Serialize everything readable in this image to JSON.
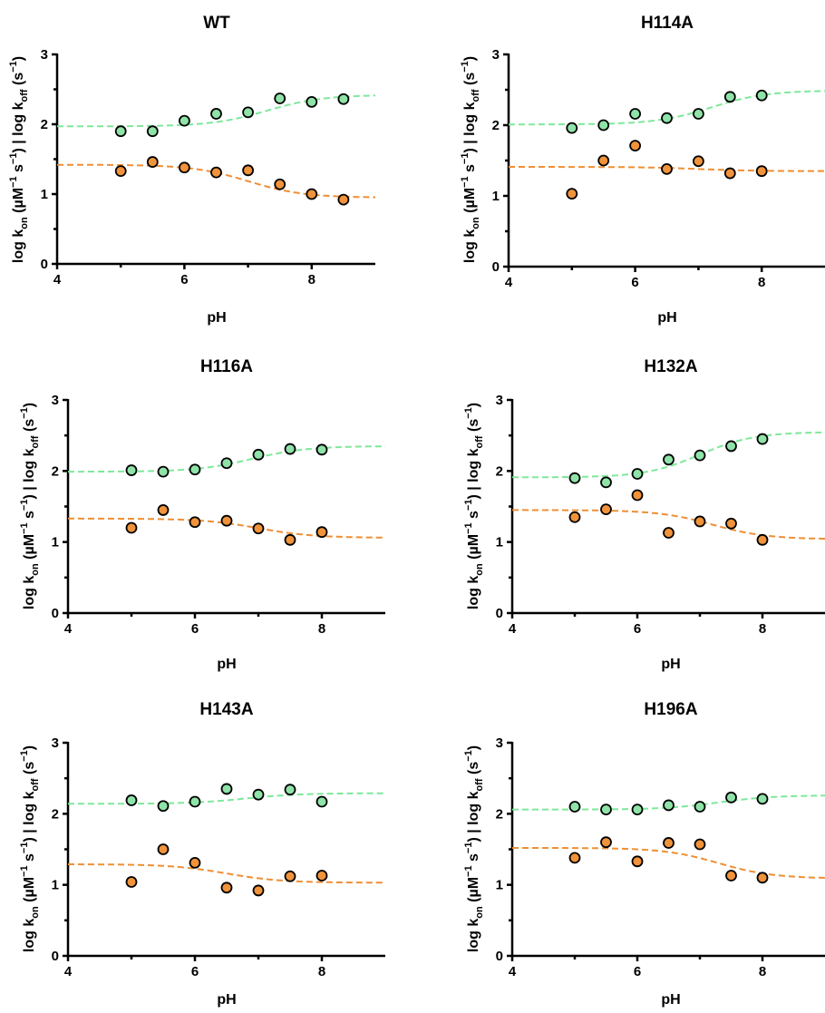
{
  "chart_data": [
    {
      "type": "scatter",
      "title": "WT",
      "xlabel": "pH",
      "ylabel": "log kon (µM−1 s−1) | log koff (s−1)",
      "xlim": [
        4,
        9
      ],
      "ylim": [
        0,
        3
      ],
      "x_ticks": [
        "4",
        "6",
        "8"
      ],
      "y_ticks": [
        "0",
        "1",
        "2",
        "3"
      ],
      "series": [
        {
          "color": "#8fe3a8",
          "line_color": "#7ee89a",
          "points": [
            [
              5,
              1.9
            ],
            [
              5.5,
              1.9
            ],
            [
              6,
              2.05
            ],
            [
              6.5,
              2.15
            ],
            [
              7,
              2.17
            ],
            [
              7.5,
              2.37
            ],
            [
              8,
              2.32
            ],
            [
              8.5,
              2.36
            ]
          ],
          "fit": {
            "low": 1.97,
            "high": 2.42,
            "pKa": 7.3,
            "sign": 1
          }
        },
        {
          "color": "#f0933a",
          "line_color": "#ee8f35",
          "points": [
            [
              5,
              1.33
            ],
            [
              5.5,
              1.46
            ],
            [
              6,
              1.38
            ],
            [
              6.5,
              1.31
            ],
            [
              7,
              1.34
            ],
            [
              7.5,
              1.14
            ],
            [
              8,
              1.0
            ],
            [
              8.5,
              0.92
            ]
          ],
          "fit": {
            "low": 0.95,
            "high": 1.42,
            "pKa": 7.0,
            "sign": -1
          }
        }
      ]
    },
    {
      "type": "scatter",
      "title": "H114A",
      "xlabel": "pH",
      "ylabel": "log kon (µM−1 s−1) | log koff (s−1)",
      "xlim": [
        4,
        9
      ],
      "ylim": [
        0,
        3
      ],
      "x_ticks": [
        "4",
        "6",
        "8"
      ],
      "y_ticks": [
        "0",
        "1",
        "2",
        "3"
      ],
      "series": [
        {
          "color": "#8fe3a8",
          "line_color": "#7ee89a",
          "points": [
            [
              5,
              1.96
            ],
            [
              5.5,
              2.0
            ],
            [
              6,
              2.16
            ],
            [
              6.5,
              2.1
            ],
            [
              7,
              2.16
            ],
            [
              7.5,
              2.4
            ],
            [
              8,
              2.42
            ]
          ],
          "fit": {
            "low": 2.01,
            "high": 2.49,
            "pKa": 7.2,
            "sign": 1
          }
        },
        {
          "color": "#f0933a",
          "line_color": "#ee8f35",
          "points": [
            [
              5,
              1.03
            ],
            [
              5.5,
              1.5
            ],
            [
              6,
              1.71
            ],
            [
              6.5,
              1.38
            ],
            [
              7,
              1.49
            ],
            [
              7.5,
              1.32
            ],
            [
              8,
              1.35
            ]
          ],
          "fit": {
            "low": 1.35,
            "high": 1.41,
            "pKa": 7.0,
            "sign": -1
          }
        }
      ]
    },
    {
      "type": "scatter",
      "title": "H116A",
      "xlabel": "pH",
      "ylabel": "log kon (µM−1 s−1) | log koff (s−1)",
      "xlim": [
        4,
        9
      ],
      "ylim": [
        0,
        3
      ],
      "x_ticks": [
        "4",
        "6",
        "8"
      ],
      "y_ticks": [
        "0",
        "1",
        "2",
        "3"
      ],
      "series": [
        {
          "color": "#8fe3a8",
          "line_color": "#7ee89a",
          "points": [
            [
              5,
              2.01
            ],
            [
              5.5,
              1.99
            ],
            [
              6,
              2.02
            ],
            [
              6.5,
              2.11
            ],
            [
              7,
              2.23
            ],
            [
              7.5,
              2.31
            ],
            [
              8,
              2.3
            ]
          ],
          "fit": {
            "low": 1.99,
            "high": 2.35,
            "pKa": 6.9,
            "sign": 1
          }
        },
        {
          "color": "#f0933a",
          "line_color": "#ee8f35",
          "points": [
            [
              5,
              1.2
            ],
            [
              5.5,
              1.45
            ],
            [
              6,
              1.28
            ],
            [
              6.5,
              1.3
            ],
            [
              7,
              1.19
            ],
            [
              7.5,
              1.03
            ],
            [
              8,
              1.14
            ]
          ],
          "fit": {
            "low": 1.06,
            "high": 1.33,
            "pKa": 7.0,
            "sign": -1
          }
        }
      ]
    },
    {
      "type": "scatter",
      "title": "H132A",
      "xlabel": "pH",
      "ylabel": "log kon (µM−1 s−1) | log koff (s−1)",
      "xlim": [
        4,
        9
      ],
      "ylim": [
        0,
        3
      ],
      "x_ticks": [
        "4",
        "6",
        "8"
      ],
      "y_ticks": [
        "0",
        "1",
        "2",
        "3"
      ],
      "series": [
        {
          "color": "#8fe3a8",
          "line_color": "#7ee89a",
          "points": [
            [
              5,
              1.9
            ],
            [
              5.5,
              1.84
            ],
            [
              6,
              1.96
            ],
            [
              6.5,
              2.16
            ],
            [
              7,
              2.22
            ],
            [
              7.5,
              2.35
            ],
            [
              8,
              2.45
            ]
          ],
          "fit": {
            "low": 1.91,
            "high": 2.55,
            "pKa": 7.0,
            "sign": 1
          }
        },
        {
          "color": "#f0933a",
          "line_color": "#ee8f35",
          "points": [
            [
              5,
              1.35
            ],
            [
              5.5,
              1.46
            ],
            [
              6,
              1.66
            ],
            [
              6.5,
              1.13
            ],
            [
              7,
              1.29
            ],
            [
              7.5,
              1.26
            ],
            [
              8,
              1.03
            ]
          ],
          "fit": {
            "low": 1.04,
            "high": 1.45,
            "pKa": 7.2,
            "sign": -1
          }
        }
      ]
    },
    {
      "type": "scatter",
      "title": "H143A",
      "xlabel": "pH",
      "ylabel": "log kon (µM−1 s−1) | log koff (s−1)",
      "xlim": [
        4,
        9
      ],
      "ylim": [
        0,
        3
      ],
      "x_ticks": [
        "4",
        "6",
        "8"
      ],
      "y_ticks": [
        "0",
        "1",
        "2",
        "3"
      ],
      "series": [
        {
          "color": "#8fe3a8",
          "line_color": "#7ee89a",
          "points": [
            [
              5,
              2.19
            ],
            [
              5.5,
              2.11
            ],
            [
              6,
              2.17
            ],
            [
              6.5,
              2.35
            ],
            [
              7,
              2.27
            ],
            [
              7.5,
              2.34
            ],
            [
              8,
              2.17
            ]
          ],
          "fit": {
            "low": 2.14,
            "high": 2.29,
            "pKa": 6.8,
            "sign": 1
          }
        },
        {
          "color": "#f0933a",
          "line_color": "#ee8f35",
          "points": [
            [
              5,
              1.04
            ],
            [
              5.5,
              1.5
            ],
            [
              6,
              1.31
            ],
            [
              6.5,
              0.96
            ],
            [
              7,
              0.92
            ],
            [
              7.5,
              1.12
            ],
            [
              8,
              1.13
            ]
          ],
          "fit": {
            "low": 1.03,
            "high": 1.29,
            "pKa": 6.5,
            "sign": -1
          }
        }
      ]
    },
    {
      "type": "scatter",
      "title": "H196A",
      "xlabel": "pH",
      "ylabel": "log kon (µM−1 s−1) | log koff (s−1)",
      "xlim": [
        4,
        9
      ],
      "ylim": [
        0,
        3
      ],
      "x_ticks": [
        "4",
        "6",
        "8"
      ],
      "y_ticks": [
        "0",
        "1",
        "2",
        "3"
      ],
      "series": [
        {
          "color": "#8fe3a8",
          "line_color": "#7ee89a",
          "points": [
            [
              5,
              2.1
            ],
            [
              5.5,
              2.06
            ],
            [
              6,
              2.06
            ],
            [
              6.5,
              2.12
            ],
            [
              7,
              2.1
            ],
            [
              7.5,
              2.23
            ],
            [
              8,
              2.21
            ]
          ],
          "fit": {
            "low": 2.06,
            "high": 2.26,
            "pKa": 7.3,
            "sign": 1
          }
        },
        {
          "color": "#f0933a",
          "line_color": "#ee8f35",
          "points": [
            [
              5,
              1.38
            ],
            [
              5.5,
              1.6
            ],
            [
              6,
              1.33
            ],
            [
              6.5,
              1.59
            ],
            [
              7,
              1.57
            ],
            [
              7.5,
              1.13
            ],
            [
              8,
              1.1
            ]
          ],
          "fit": {
            "low": 1.09,
            "high": 1.52,
            "pKa": 7.3,
            "sign": -1
          }
        }
      ]
    }
  ]
}
